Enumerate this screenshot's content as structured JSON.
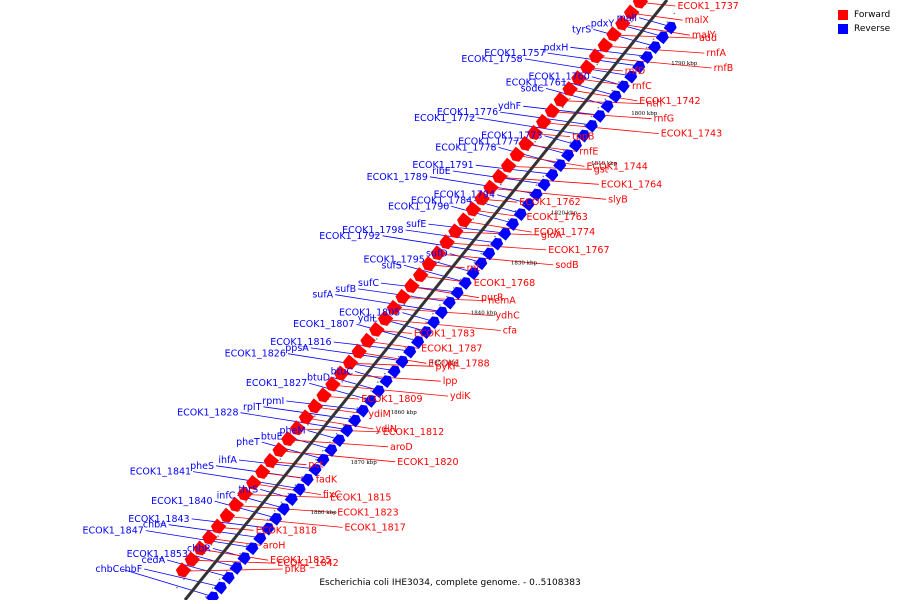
{
  "figure": {
    "caption": "Escherichia coli IHE3034, complete genome. - 0..5108383"
  },
  "legend": [
    {
      "label": "Forward",
      "color": "#ff0000"
    },
    {
      "label": "Reverse",
      "color": "#0000ff"
    }
  ],
  "colors": {
    "forward": "#ff0000",
    "reverse": "#0000ff",
    "axis": "#808080"
  },
  "axis_ticks": [
    "1790 kbp",
    "1800 kbp",
    "1810 kbp",
    "1820 kbp",
    "1830 kbp",
    "1840 kbp",
    "1850 kbp",
    "1860 kbp",
    "1870 kbp",
    "1880 kbp"
  ],
  "genes": [
    {
      "name": "ECOK1_1737",
      "strand": "forward"
    },
    {
      "name": "malI",
      "strand": "reverse"
    },
    {
      "name": "malX",
      "strand": "forward"
    },
    {
      "name": "malY",
      "strand": "forward"
    },
    {
      "name": "add",
      "strand": "forward"
    },
    {
      "name": "rnfA",
      "strand": "forward"
    },
    {
      "name": "rnfB",
      "strand": "forward"
    },
    {
      "name": "rnfD",
      "strand": "forward"
    },
    {
      "name": "rnfC",
      "strand": "forward"
    },
    {
      "name": "ECOK1_1742",
      "strand": "forward"
    },
    {
      "name": "nth",
      "strand": "forward"
    },
    {
      "name": "rnfG",
      "strand": "forward"
    },
    {
      "name": "ECOK1_1743",
      "strand": "forward"
    },
    {
      "name": "pdxY",
      "strand": "reverse"
    },
    {
      "name": "tppB",
      "strand": "forward"
    },
    {
      "name": "rnfE",
      "strand": "forward"
    },
    {
      "name": "ECOK1_1744",
      "strand": "forward"
    },
    {
      "name": "gst",
      "strand": "forward"
    },
    {
      "name": "tyrS",
      "strand": "reverse"
    },
    {
      "name": "pdxH",
      "strand": "reverse"
    },
    {
      "name": "ECOK1_1757",
      "strand": "reverse"
    },
    {
      "name": "ECOK1_1758",
      "strand": "reverse"
    },
    {
      "name": "ECOK1_1760",
      "strand": "reverse"
    },
    {
      "name": "ECOK1_1761",
      "strand": "reverse"
    },
    {
      "name": "sodC",
      "strand": "reverse"
    },
    {
      "name": "ydhF",
      "strand": "reverse"
    },
    {
      "name": "ECOK1_1776",
      "strand": "reverse"
    },
    {
      "name": "ECOK1_1772",
      "strand": "reverse"
    },
    {
      "name": "ECOK1_1773",
      "strand": "reverse"
    },
    {
      "name": "ECOK1_1777",
      "strand": "reverse"
    },
    {
      "name": "ECOK1_1778",
      "strand": "reverse"
    },
    {
      "name": "ECOK1_1791",
      "strand": "reverse"
    },
    {
      "name": "ribE",
      "strand": "reverse"
    },
    {
      "name": "ECOK1_1789",
      "strand": "reverse"
    },
    {
      "name": "ECOK1_1794",
      "strand": "reverse"
    },
    {
      "name": "ECOK1_1784",
      "strand": "reverse"
    },
    {
      "name": "ECOK1_1790",
      "strand": "reverse"
    },
    {
      "name": "sufE",
      "strand": "reverse"
    },
    {
      "name": "ECOK1_1798",
      "strand": "reverse"
    },
    {
      "name": "ECOK1_1792",
      "strand": "reverse"
    },
    {
      "name": "sufD",
      "strand": "reverse"
    },
    {
      "name": "ECOK1_1795",
      "strand": "reverse"
    },
    {
      "name": "sufS",
      "strand": "reverse"
    },
    {
      "name": "sufC",
      "strand": "reverse"
    },
    {
      "name": "sufB",
      "strand": "reverse"
    },
    {
      "name": "sufA",
      "strand": "reverse"
    },
    {
      "name": "ECOK1_1805",
      "strand": "reverse"
    },
    {
      "name": "ydiL",
      "strand": "reverse"
    },
    {
      "name": "ECOK1_1807",
      "strand": "reverse"
    },
    {
      "name": "ECOK1_1816",
      "strand": "reverse"
    },
    {
      "name": "ppsA",
      "strand": "reverse"
    },
    {
      "name": "ECOK1_1826",
      "strand": "reverse"
    },
    {
      "name": "btuC",
      "strand": "reverse"
    },
    {
      "name": "btuD",
      "strand": "reverse"
    },
    {
      "name": "ECOK1_1827",
      "strand": "reverse"
    },
    {
      "name": "rpmI",
      "strand": "reverse"
    },
    {
      "name": "rplT",
      "strand": "reverse"
    },
    {
      "name": "ECOK1_1828",
      "strand": "reverse"
    },
    {
      "name": "pheM",
      "strand": "reverse"
    },
    {
      "name": "btuE",
      "strand": "reverse"
    },
    {
      "name": "pheT",
      "strand": "reverse"
    },
    {
      "name": "ihfA",
      "strand": "reverse"
    },
    {
      "name": "pheS",
      "strand": "reverse"
    },
    {
      "name": "ECOK1_1841",
      "strand": "reverse"
    },
    {
      "name": "thrS",
      "strand": "reverse"
    },
    {
      "name": "infC",
      "strand": "reverse"
    },
    {
      "name": "ECOK1_1840",
      "strand": "reverse"
    },
    {
      "name": "ECOK1_1843",
      "strand": "reverse"
    },
    {
      "name": "chbA",
      "strand": "reverse"
    },
    {
      "name": "ECOK1_1847",
      "strand": "reverse"
    },
    {
      "name": "chbR",
      "strand": "reverse"
    },
    {
      "name": "ECOK1_1853",
      "strand": "reverse"
    },
    {
      "name": "cedA",
      "strand": "reverse"
    },
    {
      "name": "chbF",
      "strand": "reverse"
    },
    {
      "name": "chbC",
      "strand": "reverse"
    },
    {
      "name": "ECOK1_1764",
      "strand": "forward"
    },
    {
      "name": "slyB",
      "strand": "forward"
    },
    {
      "name": "ECOK1_1762",
      "strand": "forward"
    },
    {
      "name": "ECOK1_1763",
      "strand": "forward"
    },
    {
      "name": "ECOK1_1774",
      "strand": "forward"
    },
    {
      "name": "gloA",
      "strand": "forward"
    },
    {
      "name": "ECOK1_1767",
      "strand": "forward"
    },
    {
      "name": "sodB",
      "strand": "forward"
    },
    {
      "name": "rnt",
      "strand": "forward"
    },
    {
      "name": "ECOK1_1768",
      "strand": "forward"
    },
    {
      "name": "purR",
      "strand": "forward"
    },
    {
      "name": "nemA",
      "strand": "forward"
    },
    {
      "name": "ydhC",
      "strand": "forward"
    },
    {
      "name": "cfa",
      "strand": "forward"
    },
    {
      "name": "ECOK1_1783",
      "strand": "forward"
    },
    {
      "name": "ECOK1_1787",
      "strand": "forward"
    },
    {
      "name": "ECOK1_1788",
      "strand": "forward"
    },
    {
      "name": "pykF",
      "strand": "forward"
    },
    {
      "name": "lpp",
      "strand": "forward"
    },
    {
      "name": "ydiK",
      "strand": "forward"
    },
    {
      "name": "ECOK1_1809",
      "strand": "forward"
    },
    {
      "name": "ydiM",
      "strand": "forward"
    },
    {
      "name": "ydiN",
      "strand": "forward"
    },
    {
      "name": "ECOK1_1812",
      "strand": "forward"
    },
    {
      "name": "aroD",
      "strand": "forward"
    },
    {
      "name": "ECOK1_1820",
      "strand": "forward"
    },
    {
      "name": "pct",
      "strand": "forward"
    },
    {
      "name": "fadK",
      "strand": "forward"
    },
    {
      "name": "fixC",
      "strand": "forward"
    },
    {
      "name": "ECOK1_1815",
      "strand": "forward"
    },
    {
      "name": "ECOK1_1823",
      "strand": "forward"
    },
    {
      "name": "ECOK1_1817",
      "strand": "forward"
    },
    {
      "name": "ECOK1_1818",
      "strand": "forward"
    },
    {
      "name": "aroH",
      "strand": "forward"
    },
    {
      "name": "ECOK1_1825",
      "strand": "forward"
    },
    {
      "name": "ECOK1_1842",
      "strand": "forward"
    },
    {
      "name": "pfkB",
      "strand": "forward"
    }
  ]
}
